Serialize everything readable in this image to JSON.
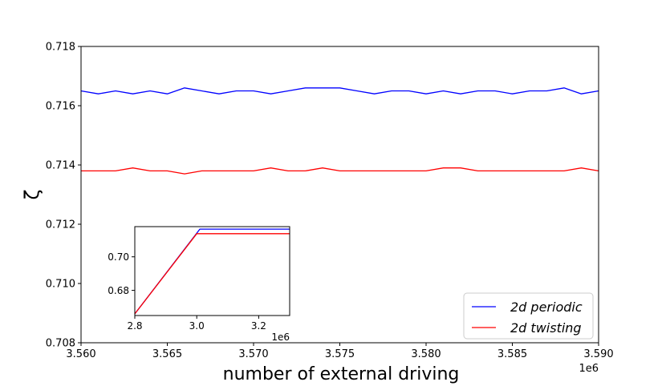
{
  "chart_data": [
    {
      "type": "line",
      "xlabel": "number of external driving",
      "ylabel": "ζ",
      "x_offset_label": "1e6",
      "xlim": [
        3560000,
        3590000
      ],
      "ylim": [
        0.708,
        0.718
      ],
      "xticks": [
        3560000,
        3565000,
        3570000,
        3575000,
        3580000,
        3585000,
        3590000
      ],
      "xtick_labels": [
        "3.560",
        "3.565",
        "3.570",
        "3.575",
        "3.580",
        "3.585",
        "3.590"
      ],
      "yticks": [
        0.708,
        0.71,
        0.712,
        0.714,
        0.716,
        0.718
      ],
      "ytick_labels": [
        "0.708",
        "0.710",
        "0.712",
        "0.714",
        "0.716",
        "0.718"
      ],
      "grid": false,
      "legend_position": "lower-right",
      "series": [
        {
          "name": "2d periodic",
          "color": "#0000ff",
          "x": [
            3560000,
            3561000,
            3562000,
            3563000,
            3564000,
            3565000,
            3566000,
            3567000,
            3568000,
            3569000,
            3570000,
            3571000,
            3572000,
            3573000,
            3574000,
            3575000,
            3576000,
            3577000,
            3578000,
            3579000,
            3580000,
            3581000,
            3582000,
            3583000,
            3584000,
            3585000,
            3586000,
            3587000,
            3588000,
            3589000,
            3590000
          ],
          "y": [
            0.7165,
            0.7164,
            0.7165,
            0.7164,
            0.7165,
            0.7164,
            0.7166,
            0.7165,
            0.7164,
            0.7165,
            0.7165,
            0.7164,
            0.7165,
            0.7166,
            0.7166,
            0.7166,
            0.7165,
            0.7164,
            0.7165,
            0.7165,
            0.7164,
            0.7165,
            0.7164,
            0.7165,
            0.7165,
            0.7164,
            0.7165,
            0.7165,
            0.7166,
            0.7164,
            0.7165
          ]
        },
        {
          "name": "2d twisting",
          "color": "#ff0000",
          "x": [
            3560000,
            3561000,
            3562000,
            3563000,
            3564000,
            3565000,
            3566000,
            3567000,
            3568000,
            3569000,
            3570000,
            3571000,
            3572000,
            3573000,
            3574000,
            3575000,
            3576000,
            3577000,
            3578000,
            3579000,
            3580000,
            3581000,
            3582000,
            3583000,
            3584000,
            3585000,
            3586000,
            3587000,
            3588000,
            3589000,
            3590000
          ],
          "y": [
            0.7138,
            0.7138,
            0.7138,
            0.7139,
            0.7138,
            0.7138,
            0.7137,
            0.7138,
            0.7138,
            0.7138,
            0.7138,
            0.7139,
            0.7138,
            0.7138,
            0.7139,
            0.7138,
            0.7138,
            0.7138,
            0.7138,
            0.7138,
            0.7138,
            0.7139,
            0.7139,
            0.7138,
            0.7138,
            0.7138,
            0.7138,
            0.7138,
            0.7138,
            0.7139,
            0.7138
          ]
        }
      ]
    },
    {
      "type": "line",
      "inset": true,
      "x_offset_label": "1e6",
      "xlim": [
        2800000,
        3300000
      ],
      "ylim": [
        0.665,
        0.718
      ],
      "xticks": [
        2800000,
        3000000,
        3200000
      ],
      "xtick_labels": [
        "2.8",
        "3.0",
        "3.2"
      ],
      "yticks": [
        0.68,
        0.7
      ],
      "ytick_labels": [
        "0.68",
        "0.70"
      ],
      "series": [
        {
          "color": "#0000ff",
          "x": [
            2800000,
            3010000,
            3300000
          ],
          "y": [
            0.666,
            0.7165,
            0.7165
          ]
        },
        {
          "color": "#ff0000",
          "x": [
            2800000,
            3000000,
            3300000
          ],
          "y": [
            0.666,
            0.7138,
            0.7138
          ]
        }
      ]
    }
  ]
}
